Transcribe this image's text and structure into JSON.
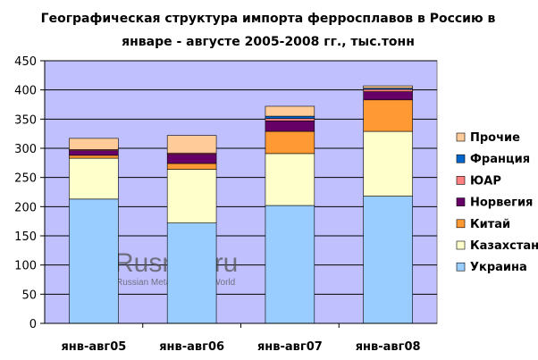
{
  "title_lines": [
    "Географическая структура импорта ферросплавов в Россию в",
    "январе - августе 2005-2008 гг., тыс.тонн"
  ],
  "watermark": {
    "brand": "Rusmet.ru",
    "tagline": "Russian Metallurgy and World"
  },
  "colors": {
    "plot_bg": "#c0c0ff",
    "ukraine": "#99ccff",
    "kazakhstan": "#ffffcc",
    "china": "#ff9933",
    "norway": "#660066",
    "south_africa": "#ff8080",
    "france": "#0066cc",
    "other": "#ffcc99"
  },
  "chart_data": {
    "type": "bar",
    "stacked": true,
    "title": "Географическая структура импорта ферросплавов в Россию в январе - августе 2005-2008 гг., тыс.тонн",
    "categories": [
      "янв-авг05",
      "янв-авг06",
      "янв-авг07",
      "янв-авг08"
    ],
    "ylim": [
      0,
      450
    ],
    "yticks": [
      0,
      50,
      100,
      150,
      200,
      250,
      300,
      350,
      400,
      450
    ],
    "grid": true,
    "legend_position": "right",
    "series": [
      {
        "name": "Украина",
        "color_key": "ukraine",
        "values": [
          213,
          172,
          202,
          218
        ]
      },
      {
        "name": "Казахстан",
        "color_key": "kazakhstan",
        "values": [
          70,
          92,
          89,
          111
        ]
      },
      {
        "name": "Китай",
        "color_key": "china",
        "values": [
          5,
          10,
          38,
          54
        ]
      },
      {
        "name": "Норвегия",
        "color_key": "norway",
        "values": [
          8,
          16,
          18,
          14
        ]
      },
      {
        "name": "ЮАР",
        "color_key": "south_africa",
        "values": [
          2,
          2,
          4,
          4
        ]
      },
      {
        "name": "Франция",
        "color_key": "france",
        "values": [
          0,
          0,
          4,
          2
        ]
      },
      {
        "name": "Прочие",
        "color_key": "other",
        "values": [
          19,
          30,
          17,
          4
        ]
      }
    ]
  }
}
